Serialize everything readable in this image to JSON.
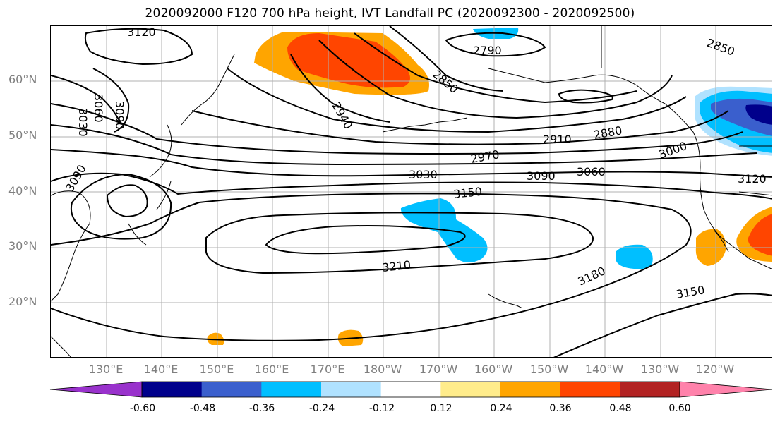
{
  "title": "2020092000 F120 700 hPa height, IVT Landfall PC (2020092300 - 2020092500)",
  "lat_labels": [
    "60°N",
    "50°N",
    "40°N",
    "30°N",
    "20°N"
  ],
  "lon_labels": [
    "130°E",
    "140°E",
    "150°E",
    "160°E",
    "170°E",
    "180°W",
    "170°W",
    "160°W",
    "150°W",
    "140°W",
    "130°W",
    "120°W"
  ],
  "contour_labels": [
    "3120",
    "3030",
    "3060",
    "3090",
    "3090",
    "2940",
    "2850",
    "2790",
    "2850",
    "2910",
    "2880",
    "2970",
    "3030",
    "3090",
    "3060",
    "3000",
    "3120",
    "3150",
    "3210",
    "3180",
    "3150"
  ],
  "colorbar": {
    "tick_labels": [
      "-0.60",
      "-0.48",
      "-0.36",
      "-0.24",
      "-0.12",
      "0.12",
      "0.24",
      "0.36",
      "0.48",
      "0.60"
    ],
    "colors": [
      "#9932cc",
      "#00008b",
      "#3a5fcd",
      "#00bfff",
      "#b0e2ff",
      "#ffffff",
      "#ffec8b",
      "#ffa500",
      "#ff4500",
      "#b22222",
      "#ff82ab"
    ]
  },
  "colors": {
    "grid": "#b0b0b0",
    "contour": "#000000",
    "coast": "#000000",
    "axis_label": "#7f7f7f"
  }
}
